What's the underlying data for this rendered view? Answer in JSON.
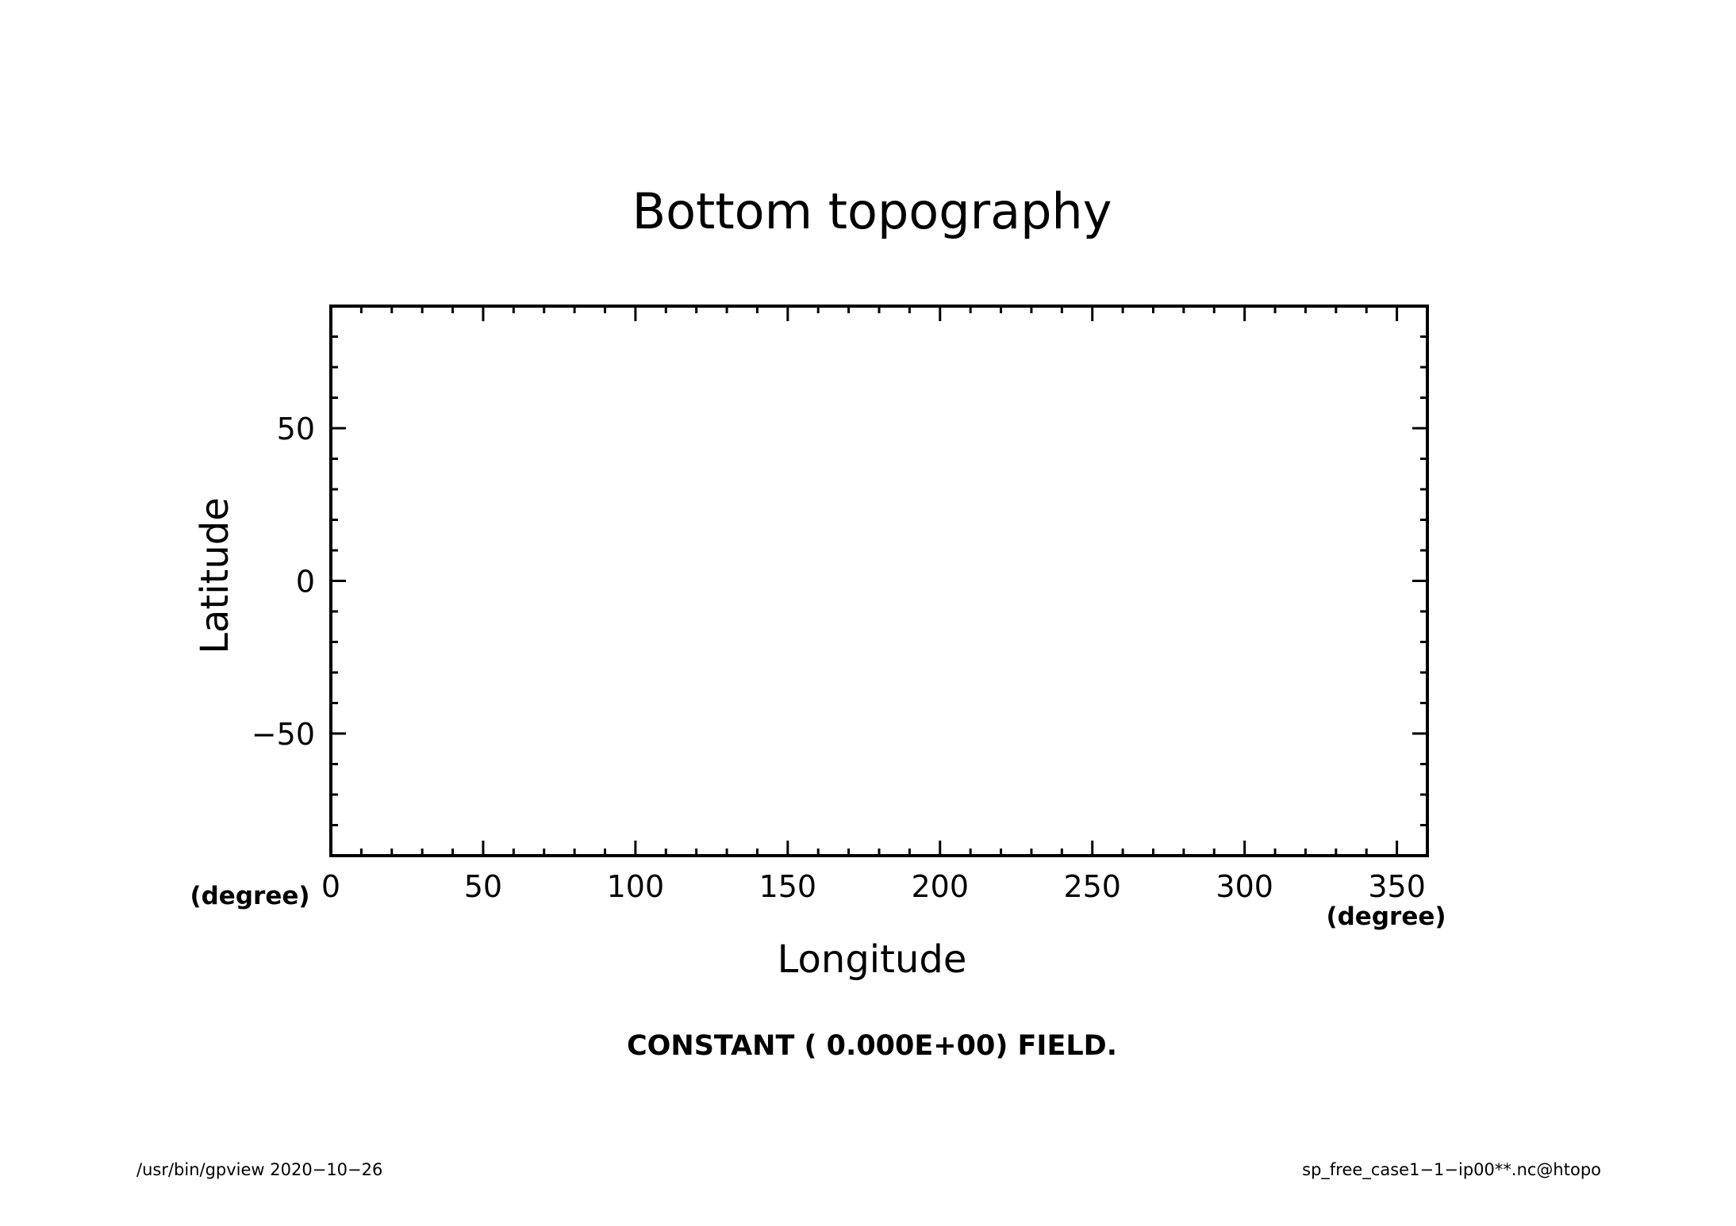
{
  "chart_data": {
    "type": "heatmap",
    "title": "Bottom topography",
    "xlabel": "Longitude",
    "ylabel": "Latitude",
    "xunit": "(degree)",
    "yunit": "(degree)",
    "xlim": [
      0,
      360
    ],
    "ylim": [
      -90,
      90
    ],
    "xticks": [
      0,
      50,
      100,
      150,
      200,
      250,
      300,
      350
    ],
    "xtick_labels": [
      "0",
      "50",
      "100",
      "150",
      "200",
      "250",
      "300",
      "350"
    ],
    "yticks": [
      -50,
      0,
      50
    ],
    "ytick_labels": [
      "−50",
      "0",
      "50"
    ],
    "x_minor_step": 10,
    "y_minor_step": 10,
    "grid": false,
    "field_value": 0.0,
    "message": "CONSTANT ( 0.000E+00) FIELD."
  },
  "footer": {
    "left": "/usr/bin/gpview   2020−10−26",
    "right": "sp_free_case1−1−ip00**.nc@htopo"
  }
}
